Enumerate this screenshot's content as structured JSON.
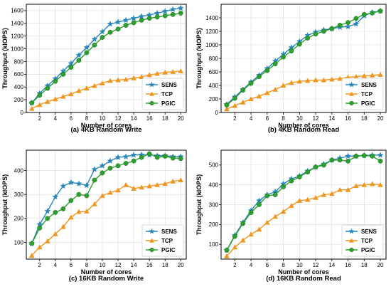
{
  "colors": {
    "SENS": "#2a86b9",
    "TCP": "#f0961e",
    "PGIC": "#2ca02c",
    "grid": "#d9d9d9",
    "axis": "#000000"
  },
  "chart_data": [
    {
      "type": "line",
      "caption": "(a) 4KB Random Write",
      "xlabel": "Number of cores",
      "ylabel": "Throughput (kIOPS)",
      "x": [
        1,
        2,
        3,
        4,
        5,
        6,
        7,
        8,
        9,
        10,
        11,
        12,
        13,
        14,
        15,
        16,
        17,
        18,
        19,
        20
      ],
      "xticks": [
        2,
        4,
        6,
        8,
        10,
        12,
        14,
        16,
        18,
        20
      ],
      "yticks": [
        0,
        200,
        400,
        600,
        800,
        1000,
        1200,
        1400,
        1600
      ],
      "xlim": [
        0.3,
        20.7
      ],
      "ylim": [
        0,
        1700
      ],
      "grid": true,
      "legend": "bottom-right",
      "series": [
        {
          "name": "SENS",
          "marker": "star",
          "values": [
            150,
            300,
            420,
            530,
            650,
            770,
            900,
            1020,
            1150,
            1270,
            1390,
            1420,
            1450,
            1480,
            1510,
            1530,
            1560,
            1590,
            1620,
            1640
          ]
        },
        {
          "name": "TCP",
          "marker": "triangle",
          "values": [
            60,
            120,
            170,
            210,
            250,
            290,
            340,
            380,
            420,
            460,
            500,
            510,
            520,
            540,
            560,
            590,
            610,
            630,
            640,
            650
          ]
        },
        {
          "name": "PGIC",
          "marker": "circle",
          "values": [
            150,
            270,
            380,
            490,
            600,
            710,
            820,
            940,
            1060,
            1180,
            1260,
            1310,
            1370,
            1410,
            1450,
            1480,
            1500,
            1520,
            1540,
            1560
          ]
        }
      ]
    },
    {
      "type": "line",
      "caption": "(b) 4KB Random Read",
      "xlabel": "Number of cores",
      "ylabel": "Throughput (kIOPS)",
      "x": [
        1,
        2,
        3,
        4,
        5,
        6,
        7,
        8,
        9,
        10,
        11,
        12,
        13,
        14,
        15,
        16,
        17,
        18,
        19,
        20
      ],
      "xticks": [
        2,
        4,
        6,
        8,
        10,
        12,
        14,
        16,
        18,
        20
      ],
      "yticks": [
        0,
        200,
        400,
        600,
        800,
        1000,
        1200,
        1400
      ],
      "xlim": [
        0.3,
        20.7
      ],
      "ylim": [
        0,
        1600
      ],
      "grid": true,
      "legend": "bottom-right",
      "series": [
        {
          "name": "SENS",
          "marker": "star",
          "values": [
            120,
            230,
            340,
            450,
            550,
            650,
            760,
            860,
            960,
            1050,
            1140,
            1190,
            1220,
            1240,
            1260,
            1270,
            1310,
            1430,
            1480,
            1500
          ]
        },
        {
          "name": "TCP",
          "marker": "triangle",
          "values": [
            50,
            100,
            150,
            200,
            240,
            290,
            340,
            400,
            440,
            460,
            470,
            480,
            480,
            490,
            500,
            520,
            530,
            540,
            550,
            560
          ]
        },
        {
          "name": "PGIC",
          "marker": "circle",
          "values": [
            110,
            210,
            330,
            430,
            530,
            620,
            720,
            820,
            910,
            1010,
            1100,
            1160,
            1200,
            1240,
            1290,
            1330,
            1390,
            1450,
            1470,
            1500
          ]
        }
      ]
    },
    {
      "type": "line",
      "caption": "(c) 16KB Random Write",
      "xlabel": "Number of cores",
      "ylabel": "Throughput (kIOPS)",
      "x": [
        1,
        2,
        3,
        4,
        5,
        6,
        7,
        8,
        9,
        10,
        11,
        12,
        13,
        14,
        15,
        16,
        17,
        18,
        19,
        20
      ],
      "xticks": [
        2,
        4,
        6,
        8,
        10,
        12,
        14,
        16,
        18,
        20
      ],
      "yticks": [
        100,
        200,
        300,
        400
      ],
      "xlim": [
        0.3,
        20.7
      ],
      "ylim": [
        30,
        485
      ],
      "grid": true,
      "legend": "bottom-right",
      "series": [
        {
          "name": "SENS",
          "marker": "star",
          "values": [
            95,
            175,
            230,
            290,
            335,
            350,
            345,
            338,
            405,
            420,
            440,
            455,
            458,
            465,
            466,
            465,
            462,
            462,
            458,
            458
          ]
        },
        {
          "name": "TCP",
          "marker": "triangle",
          "values": [
            45,
            80,
            105,
            135,
            165,
            205,
            228,
            230,
            260,
            295,
            308,
            318,
            340,
            325,
            330,
            335,
            340,
            345,
            355,
            360
          ]
        },
        {
          "name": "PGIC",
          "marker": "circle",
          "values": [
            95,
            160,
            200,
            225,
            240,
            275,
            300,
            295,
            360,
            390,
            410,
            420,
            430,
            440,
            455,
            470,
            455,
            460,
            452,
            450
          ]
        }
      ]
    },
    {
      "type": "line",
      "caption": "(d) 16KB Random Read",
      "xlabel": "Number of cores",
      "ylabel": "Throughput (kIOPS)",
      "x": [
        1,
        2,
        3,
        4,
        5,
        6,
        7,
        8,
        9,
        10,
        11,
        12,
        13,
        14,
        15,
        16,
        17,
        18,
        19,
        20
      ],
      "xticks": [
        2,
        4,
        6,
        8,
        10,
        12,
        14,
        16,
        18,
        20
      ],
      "yticks": [
        100,
        200,
        300,
        400,
        500
      ],
      "xlim": [
        0.3,
        20.7
      ],
      "ylim": [
        25,
        575
      ],
      "grid": true,
      "legend": "bottom-right",
      "series": [
        {
          "name": "SENS",
          "marker": "star",
          "values": [
            70,
            145,
            210,
            270,
            320,
            350,
            365,
            405,
            430,
            445,
            470,
            490,
            505,
            525,
            535,
            545,
            545,
            548,
            550,
            550
          ]
        },
        {
          "name": "TCP",
          "marker": "triangle",
          "values": [
            40,
            85,
            120,
            150,
            175,
            210,
            240,
            265,
            295,
            320,
            325,
            335,
            350,
            355,
            375,
            375,
            395,
            400,
            405,
            400
          ]
        },
        {
          "name": "PGIC",
          "marker": "circle",
          "values": [
            70,
            140,
            205,
            260,
            300,
            345,
            350,
            390,
            420,
            440,
            465,
            490,
            500,
            525,
            525,
            520,
            545,
            548,
            545,
            520
          ]
        }
      ]
    }
  ]
}
